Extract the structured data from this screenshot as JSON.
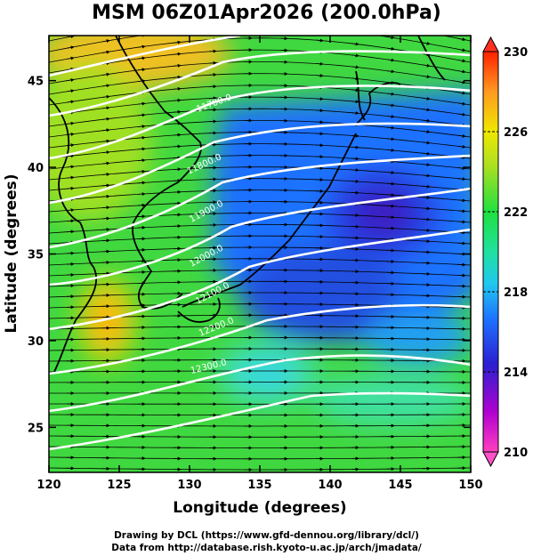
{
  "title": "MSM 06Z01Apr2026 (200.0hPa)",
  "credits": {
    "line1": "Drawing by DCL (https://www.gfd-dennou.org/library/dcl/)",
    "line2": "Data from http://database.rish.kyoto-u.ac.jp/arch/jmadata/"
  },
  "chart_data": {
    "type": "heatmap",
    "title": "MSM 06Z01Apr2026 (200.0hPa)",
    "xlabel": "Longitude (degrees)",
    "ylabel": "Latitude  (degrees)",
    "xlim": [
      120,
      150
    ],
    "ylim": [
      22.4,
      47.6
    ],
    "x_ticks": [
      "120",
      "125",
      "130",
      "135",
      "140",
      "145",
      "150"
    ],
    "y_ticks": [
      "25",
      "30",
      "35",
      "40",
      "45"
    ],
    "colorbar": {
      "range": [
        210,
        230
      ],
      "ticks": [
        "210",
        "214",
        "218",
        "222",
        "226",
        "230"
      ],
      "colors": [
        "#ff40c0",
        "#b000d0",
        "#1830d8",
        "#1e90ff",
        "#20e0e0",
        "#20e040",
        "#90e020",
        "#f0f000",
        "#ffa020",
        "#ff2000"
      ]
    },
    "contour_labels": [
      "11700.0",
      "11800.0",
      "11900.0",
      "12000.0",
      "12100.0",
      "12200.0",
      "12300.0"
    ],
    "field": "temperature (shaded), geopotential height (white contours), wind (streamlines)"
  },
  "colors": {
    "contour": "#ffffff",
    "coast": "#000000"
  }
}
